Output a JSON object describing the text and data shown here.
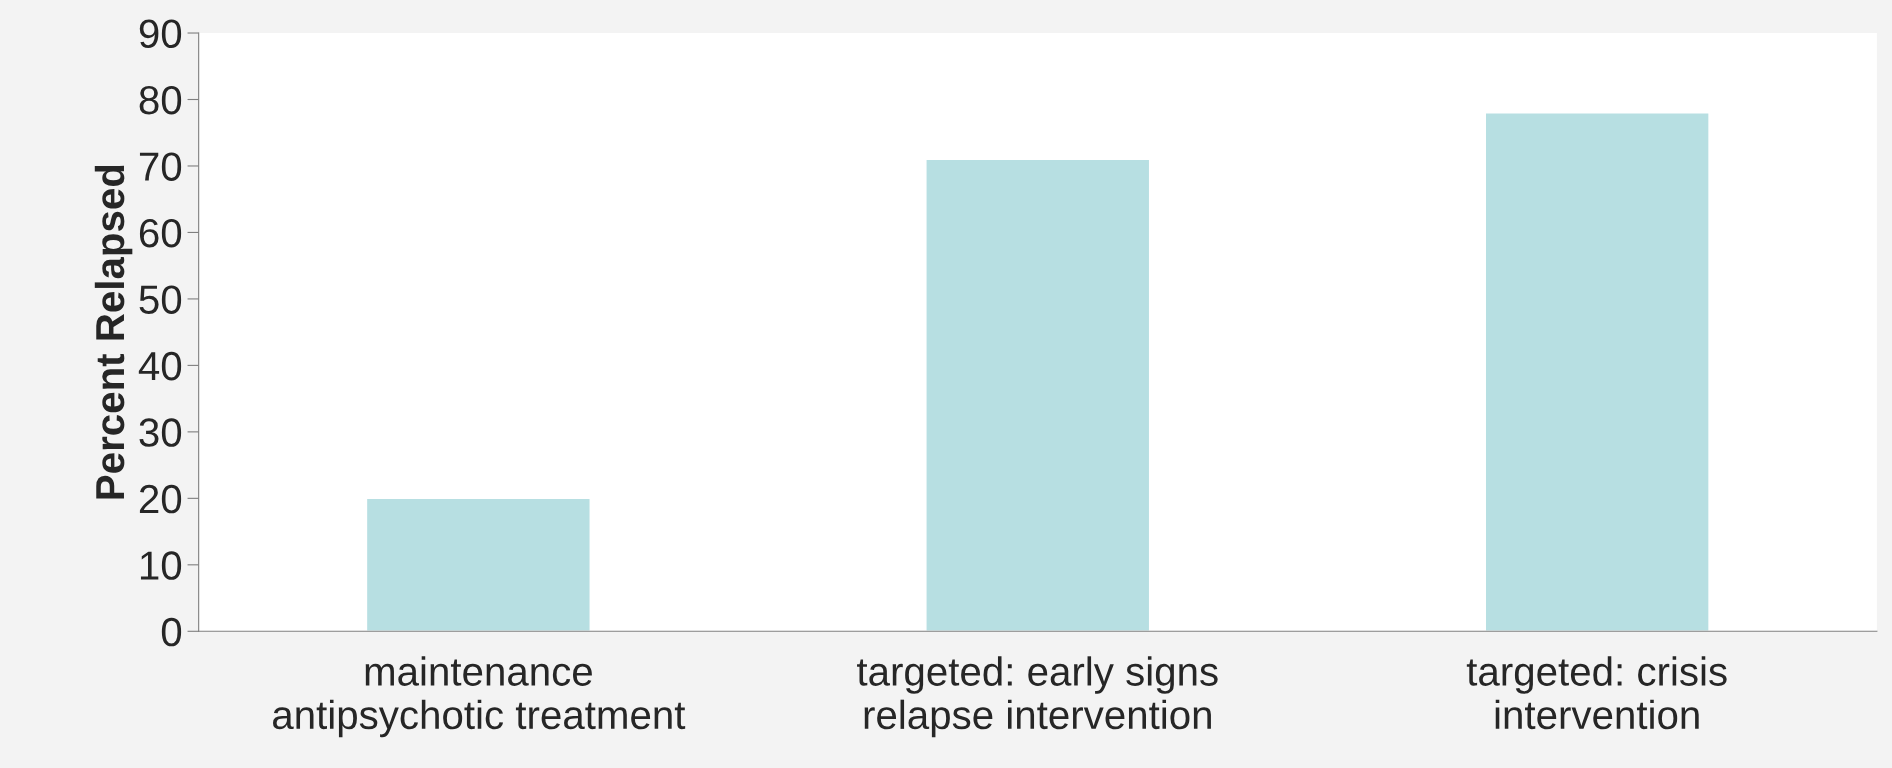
{
  "chart_data": {
    "type": "bar",
    "ylabel": "Percent Relapsed",
    "categories": [
      "maintenance\nantipsychotic treatment",
      "targeted: early signs\nrelapse intervention",
      "targeted: crisis\nintervention"
    ],
    "values": [
      20,
      71,
      78
    ],
    "color": "#b7dfe2",
    "ylim": [
      0,
      90
    ],
    "yticks": [
      0,
      10,
      20,
      30,
      40,
      50,
      60,
      70,
      80,
      90
    ],
    "grid": false
  }
}
